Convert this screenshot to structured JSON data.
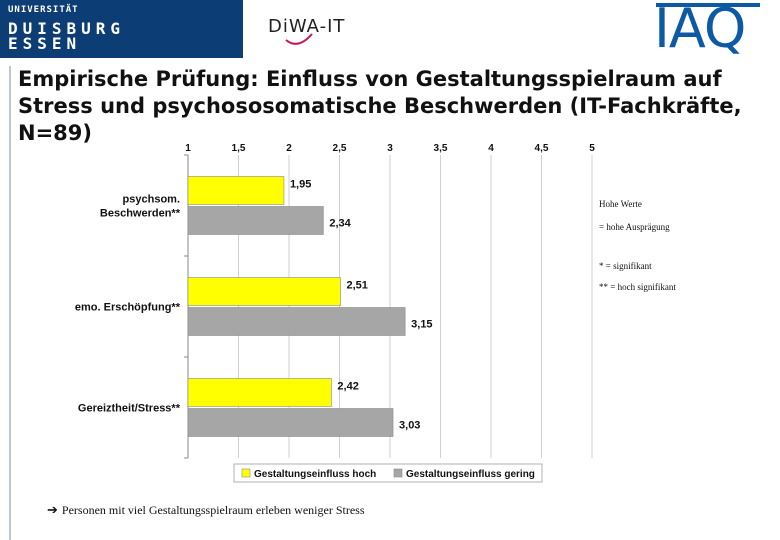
{
  "header": {
    "university_logo": {
      "line1": "UNIVERSITÄT",
      "line2": "DUISBURG",
      "line3": "ESSEN"
    },
    "diva_logo": {
      "text": "DiWA-IT"
    },
    "iaq_logo": {
      "text": "IAQ"
    }
  },
  "slide": {
    "title": "Empirische Prüfung: Einfluss von Gestaltungsspielraum auf Stress und psychososomatische Beschwerden (IT-Fachkräfte, N=89)",
    "notes": {
      "line1": "Hohe Werte",
      "line2": "= hohe Ausprägung",
      "line3": "* = signifikant",
      "line4": "** = hoch signifikant"
    },
    "conclusion": "Personen mit viel Gestaltungsspielraum erleben weniger Stress"
  },
  "chart_data": {
    "type": "bar",
    "orientation": "horizontal",
    "categories": [
      "psychsom. Beschwerden**",
      "emo. Erschöpfung**",
      "Gereiztheit/Stress**"
    ],
    "category_lines": [
      [
        "psychsom.",
        "Beschwerden**"
      ],
      [
        "emo. Erschöpfung**"
      ],
      [
        "Gereiztheit/Stress**"
      ]
    ],
    "series": [
      {
        "name": "Gestaltungseinfluss hoch",
        "values": [
          1.95,
          2.51,
          2.42
        ],
        "labels": [
          "1,95",
          "2,51",
          "2,42"
        ],
        "color": "#ffff00"
      },
      {
        "name": "Gestaltungseinfluss gering",
        "values": [
          2.34,
          3.15,
          3.03
        ],
        "labels": [
          "2,34",
          "3,15",
          "3,03"
        ],
        "color": "#a6a6a6"
      }
    ],
    "xlim": [
      1,
      5
    ],
    "ticks": [
      1,
      1.5,
      2,
      2.5,
      3,
      3.5,
      4,
      4.5,
      5
    ],
    "tick_labels": [
      "1",
      "1,5",
      "2",
      "2,5",
      "3",
      "3,5",
      "4",
      "4,5",
      "5"
    ],
    "axis_position": "top",
    "grid": true,
    "legend": "bottom",
    "title": "",
    "xlabel": "",
    "ylabel": ""
  }
}
